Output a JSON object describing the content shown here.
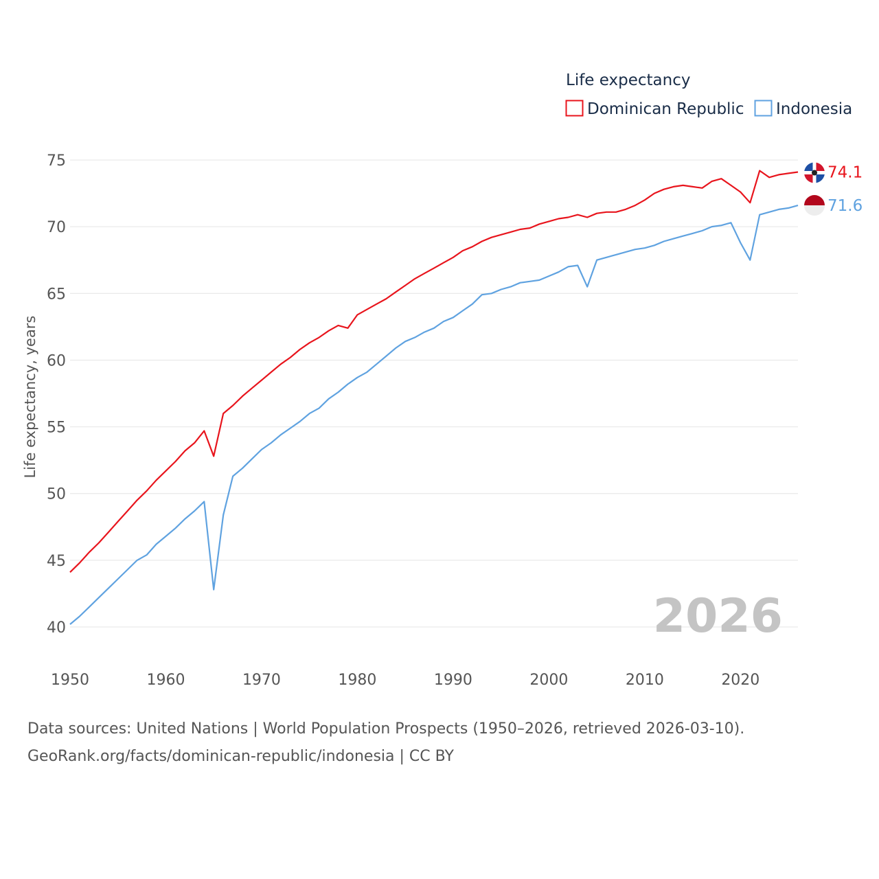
{
  "chart_data": {
    "type": "line",
    "legend_title": "Life expectancy",
    "ylabel": "Life expectancy, years",
    "xlim": [
      1950,
      2026
    ],
    "ylim": [
      40,
      75
    ],
    "yticks": [
      40,
      45,
      50,
      55,
      60,
      65,
      70,
      75
    ],
    "xticks": [
      1950,
      1960,
      1970,
      1980,
      1990,
      2000,
      2010,
      2020
    ],
    "year_label": "2026",
    "legend_position": "top-right",
    "series": [
      {
        "name": "Dominican Republic",
        "color": "#e8141c",
        "end_label": "74.1",
        "x": [
          1950,
          1951,
          1952,
          1953,
          1954,
          1955,
          1956,
          1957,
          1958,
          1959,
          1960,
          1961,
          1962,
          1963,
          1964,
          1965,
          1966,
          1967,
          1968,
          1969,
          1970,
          1971,
          1972,
          1973,
          1974,
          1975,
          1976,
          1977,
          1978,
          1979,
          1980,
          1981,
          1982,
          1983,
          1984,
          1985,
          1986,
          1987,
          1988,
          1989,
          1990,
          1991,
          1992,
          1993,
          1994,
          1995,
          1996,
          1997,
          1998,
          1999,
          2000,
          2001,
          2002,
          2003,
          2004,
          2005,
          2006,
          2007,
          2008,
          2009,
          2010,
          2011,
          2012,
          2013,
          2014,
          2015,
          2016,
          2017,
          2018,
          2019,
          2020,
          2021,
          2022,
          2023,
          2024,
          2025,
          2026
        ],
        "values": [
          44.1,
          44.8,
          45.6,
          46.3,
          47.1,
          47.9,
          48.7,
          49.5,
          50.2,
          51.0,
          51.7,
          52.4,
          53.2,
          53.8,
          54.7,
          52.8,
          56.0,
          56.6,
          57.3,
          57.9,
          58.5,
          59.1,
          59.7,
          60.2,
          60.8,
          61.3,
          61.7,
          62.2,
          62.6,
          62.4,
          63.4,
          63.8,
          64.2,
          64.6,
          65.1,
          65.6,
          66.1,
          66.5,
          66.9,
          67.3,
          67.7,
          68.2,
          68.5,
          68.9,
          69.2,
          69.4,
          69.6,
          69.8,
          69.9,
          70.2,
          70.4,
          70.6,
          70.7,
          70.9,
          70.7,
          71.0,
          71.1,
          71.1,
          71.3,
          71.6,
          72.0,
          72.5,
          72.8,
          73.0,
          73.1,
          73.0,
          72.9,
          73.4,
          73.6,
          73.1,
          72.6,
          71.8,
          74.2,
          73.7,
          73.9,
          74.0,
          74.1
        ]
      },
      {
        "name": "Indonesia",
        "color": "#5fa2e0",
        "end_label": "71.6",
        "x": [
          1950,
          1951,
          1952,
          1953,
          1954,
          1955,
          1956,
          1957,
          1958,
          1959,
          1960,
          1961,
          1962,
          1963,
          1964,
          1965,
          1966,
          1967,
          1968,
          1969,
          1970,
          1971,
          1972,
          1973,
          1974,
          1975,
          1976,
          1977,
          1978,
          1979,
          1980,
          1981,
          1982,
          1983,
          1984,
          1985,
          1986,
          1987,
          1988,
          1989,
          1990,
          1991,
          1992,
          1993,
          1994,
          1995,
          1996,
          1997,
          1998,
          1999,
          2000,
          2001,
          2002,
          2003,
          2004,
          2005,
          2006,
          2007,
          2008,
          2009,
          2010,
          2011,
          2012,
          2013,
          2014,
          2015,
          2016,
          2017,
          2018,
          2019,
          2020,
          2021,
          2022,
          2023,
          2024,
          2025,
          2026
        ],
        "values": [
          40.2,
          40.8,
          41.5,
          42.2,
          42.9,
          43.6,
          44.3,
          45.0,
          45.4,
          46.2,
          46.8,
          47.4,
          48.1,
          48.7,
          49.4,
          42.8,
          48.4,
          51.3,
          51.9,
          52.6,
          53.3,
          53.8,
          54.4,
          54.9,
          55.4,
          56.0,
          56.4,
          57.1,
          57.6,
          58.2,
          58.7,
          59.1,
          59.7,
          60.3,
          60.9,
          61.4,
          61.7,
          62.1,
          62.4,
          62.9,
          63.2,
          63.7,
          64.2,
          64.9,
          65.0,
          65.3,
          65.5,
          65.8,
          65.9,
          66.0,
          66.3,
          66.6,
          67.0,
          67.1,
          65.5,
          67.5,
          67.7,
          67.9,
          68.1,
          68.3,
          68.4,
          68.6,
          68.9,
          69.1,
          69.3,
          69.5,
          69.7,
          70.0,
          70.1,
          70.3,
          68.8,
          67.5,
          70.9,
          71.1,
          71.3,
          71.4,
          71.6
        ]
      }
    ]
  },
  "footer": {
    "line1": "Data sources: United Nations | World Population Prospects (1950–2026, retrieved 2026-03-10).",
    "line2": "GeoRank.org/facts/dominican-republic/indonesia | CC BY"
  }
}
